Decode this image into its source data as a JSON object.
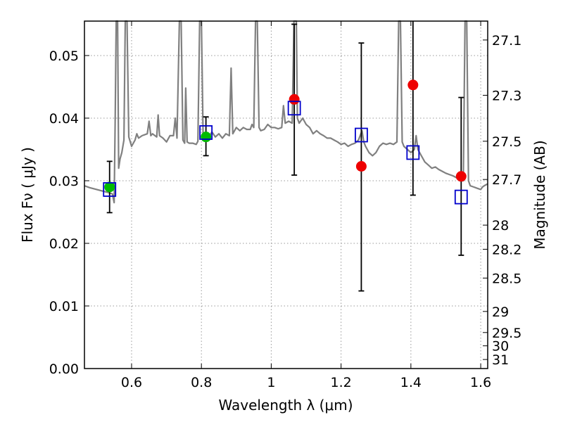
{
  "chart_data": {
    "type": "scatter",
    "xlabel": "Wavelength  λ (μm)",
    "ylabel": "Flux  Fν  ( μJy )",
    "ylabel_right": "Magnitude (AB)",
    "xlim": [
      0.465,
      1.62
    ],
    "ylim": [
      0.0,
      0.0555
    ],
    "grid": true,
    "x_ticks": [
      0.6,
      0.8,
      1.0,
      1.2,
      1.4,
      1.6
    ],
    "x_tick_labels": [
      "0.6",
      "0.8",
      "1",
      "1.2",
      "1.4",
      "1.6"
    ],
    "y_ticks": [
      0.0,
      0.01,
      0.02,
      0.03,
      0.04,
      0.05
    ],
    "y_tick_labels": [
      "0.00",
      "0.01",
      "0.02",
      "0.03",
      "0.04",
      "0.05"
    ],
    "mag_ticks": [
      27.1,
      27.3,
      27.5,
      27.7,
      28,
      28.2,
      28.5,
      29,
      29.5,
      30,
      31
    ],
    "mag_tick_labels": [
      "27.1",
      "27.3",
      "27.5",
      "27.7",
      "28",
      "28.2",
      "28.5",
      "29",
      "29.5",
      "30",
      "31"
    ],
    "colors": {
      "model": "#808080",
      "observed_green": "#00bb00",
      "observed_red": "#ee0000",
      "model_band": "#0000cc",
      "errorbar": "#000000",
      "grid": "#999999"
    },
    "series": [
      {
        "name": "model spectrum",
        "kind": "line",
        "points": [
          [
            0.465,
            0.0292
          ],
          [
            0.48,
            0.0289
          ],
          [
            0.5,
            0.0286
          ],
          [
            0.52,
            0.0283
          ],
          [
            0.535,
            0.0281
          ],
          [
            0.545,
            0.0279
          ],
          [
            0.55,
            0.0265
          ],
          [
            0.553,
            0.04
          ],
          [
            0.556,
            0.0555
          ],
          [
            0.56,
            0.0555
          ],
          [
            0.563,
            0.032
          ],
          [
            0.567,
            0.0335
          ],
          [
            0.572,
            0.0345
          ],
          [
            0.578,
            0.0365
          ],
          [
            0.582,
            0.0555
          ],
          [
            0.587,
            0.0555
          ],
          [
            0.592,
            0.037
          ],
          [
            0.6,
            0.0355
          ],
          [
            0.61,
            0.0365
          ],
          [
            0.615,
            0.0375
          ],
          [
            0.62,
            0.0368
          ],
          [
            0.63,
            0.0372
          ],
          [
            0.645,
            0.0375
          ],
          [
            0.65,
            0.0395
          ],
          [
            0.655,
            0.0372
          ],
          [
            0.66,
            0.0375
          ],
          [
            0.672,
            0.037
          ],
          [
            0.676,
            0.0405
          ],
          [
            0.68,
            0.0372
          ],
          [
            0.69,
            0.0368
          ],
          [
            0.7,
            0.0362
          ],
          [
            0.71,
            0.0372
          ],
          [
            0.72,
            0.0372
          ],
          [
            0.725,
            0.04
          ],
          [
            0.73,
            0.0368
          ],
          [
            0.737,
            0.0555
          ],
          [
            0.742,
            0.0555
          ],
          [
            0.747,
            0.0365
          ],
          [
            0.752,
            0.036
          ],
          [
            0.755,
            0.0448
          ],
          [
            0.759,
            0.0362
          ],
          [
            0.765,
            0.036
          ],
          [
            0.775,
            0.036
          ],
          [
            0.785,
            0.0358
          ],
          [
            0.79,
            0.0363
          ],
          [
            0.795,
            0.0555
          ],
          [
            0.8,
            0.0555
          ],
          [
            0.805,
            0.0365
          ],
          [
            0.81,
            0.0368
          ],
          [
            0.82,
            0.0368
          ],
          [
            0.83,
            0.0378
          ],
          [
            0.84,
            0.037
          ],
          [
            0.85,
            0.0375
          ],
          [
            0.86,
            0.0368
          ],
          [
            0.87,
            0.0375
          ],
          [
            0.88,
            0.0372
          ],
          [
            0.885,
            0.048
          ],
          [
            0.89,
            0.0375
          ],
          [
            0.9,
            0.0385
          ],
          [
            0.91,
            0.038
          ],
          [
            0.92,
            0.0385
          ],
          [
            0.93,
            0.0382
          ],
          [
            0.94,
            0.0382
          ],
          [
            0.945,
            0.039
          ],
          [
            0.95,
            0.0385
          ],
          [
            0.955,
            0.0555
          ],
          [
            0.96,
            0.0555
          ],
          [
            0.965,
            0.0385
          ],
          [
            0.97,
            0.038
          ],
          [
            0.98,
            0.0382
          ],
          [
            0.99,
            0.039
          ],
          [
            1.0,
            0.0385
          ],
          [
            1.01,
            0.0385
          ],
          [
            1.02,
            0.0383
          ],
          [
            1.03,
            0.0385
          ],
          [
            1.035,
            0.042
          ],
          [
            1.04,
            0.0392
          ],
          [
            1.05,
            0.0395
          ],
          [
            1.06,
            0.0392
          ],
          [
            1.065,
            0.0555
          ],
          [
            1.072,
            0.0555
          ],
          [
            1.075,
            0.04
          ],
          [
            1.08,
            0.0392
          ],
          [
            1.09,
            0.04
          ],
          [
            1.1,
            0.039
          ],
          [
            1.11,
            0.0385
          ],
          [
            1.12,
            0.0375
          ],
          [
            1.13,
            0.038
          ],
          [
            1.14,
            0.0375
          ],
          [
            1.15,
            0.0372
          ],
          [
            1.16,
            0.0368
          ],
          [
            1.17,
            0.0368
          ],
          [
            1.18,
            0.0365
          ],
          [
            1.19,
            0.0362
          ],
          [
            1.2,
            0.0358
          ],
          [
            1.21,
            0.036
          ],
          [
            1.22,
            0.0355
          ],
          [
            1.23,
            0.0358
          ],
          [
            1.24,
            0.036
          ],
          [
            1.25,
            0.0365
          ],
          [
            1.26,
            0.038
          ],
          [
            1.265,
            0.0362
          ],
          [
            1.27,
            0.0355
          ],
          [
            1.28,
            0.0345
          ],
          [
            1.29,
            0.034
          ],
          [
            1.3,
            0.0345
          ],
          [
            1.31,
            0.0355
          ],
          [
            1.32,
            0.036
          ],
          [
            1.33,
            0.0358
          ],
          [
            1.34,
            0.036
          ],
          [
            1.35,
            0.0358
          ],
          [
            1.36,
            0.0362
          ],
          [
            1.365,
            0.0555
          ],
          [
            1.37,
            0.0555
          ],
          [
            1.375,
            0.0362
          ],
          [
            1.38,
            0.0355
          ],
          [
            1.39,
            0.035
          ],
          [
            1.4,
            0.0345
          ],
          [
            1.41,
            0.035
          ],
          [
            1.415,
            0.0372
          ],
          [
            1.42,
            0.035
          ],
          [
            1.43,
            0.034
          ],
          [
            1.44,
            0.033
          ],
          [
            1.45,
            0.0325
          ],
          [
            1.46,
            0.032
          ],
          [
            1.47,
            0.0322
          ],
          [
            1.48,
            0.0318
          ],
          [
            1.49,
            0.0315
          ],
          [
            1.5,
            0.0312
          ],
          [
            1.51,
            0.031
          ],
          [
            1.52,
            0.0308
          ],
          [
            1.53,
            0.0305
          ],
          [
            1.54,
            0.03
          ],
          [
            1.55,
            0.03
          ],
          [
            1.555,
            0.0555
          ],
          [
            1.56,
            0.0555
          ],
          [
            1.565,
            0.03
          ],
          [
            1.57,
            0.0292
          ],
          [
            1.58,
            0.029
          ],
          [
            1.59,
            0.0288
          ],
          [
            1.6,
            0.0286
          ],
          [
            1.605,
            0.029
          ],
          [
            1.61,
            0.0292
          ],
          [
            1.62,
            0.0295
          ]
        ]
      },
      {
        "name": "observed flux (green)",
        "kind": "circle",
        "points": [
          [
            0.537,
            0.029
          ],
          [
            0.813,
            0.037
          ]
        ]
      },
      {
        "name": "observed flux (red)",
        "kind": "circle",
        "points": [
          [
            1.066,
            0.043
          ],
          [
            1.258,
            0.0323
          ],
          [
            1.406,
            0.0453
          ],
          [
            1.544,
            0.0307
          ]
        ]
      },
      {
        "name": "model band flux",
        "kind": "square",
        "points": [
          [
            0.537,
            0.0286
          ],
          [
            0.813,
            0.0377
          ],
          [
            1.066,
            0.0416
          ],
          [
            1.258,
            0.0373
          ],
          [
            1.406,
            0.0345
          ],
          [
            1.544,
            0.0274
          ]
        ]
      },
      {
        "name": "flux uncertainty",
        "kind": "errorbar",
        "points": [
          {
            "x": 0.537,
            "low": 0.0249,
            "high": 0.0331
          },
          {
            "x": 0.813,
            "low": 0.034,
            "high": 0.0402
          },
          {
            "x": 1.066,
            "low": 0.0309,
            "high": 0.055
          },
          {
            "x": 1.258,
            "low": 0.0124,
            "high": 0.052
          },
          {
            "x": 1.406,
            "low": 0.0277,
            "high": 0.0555
          },
          {
            "x": 1.544,
            "low": 0.0181,
            "high": 0.0433
          }
        ]
      }
    ]
  }
}
